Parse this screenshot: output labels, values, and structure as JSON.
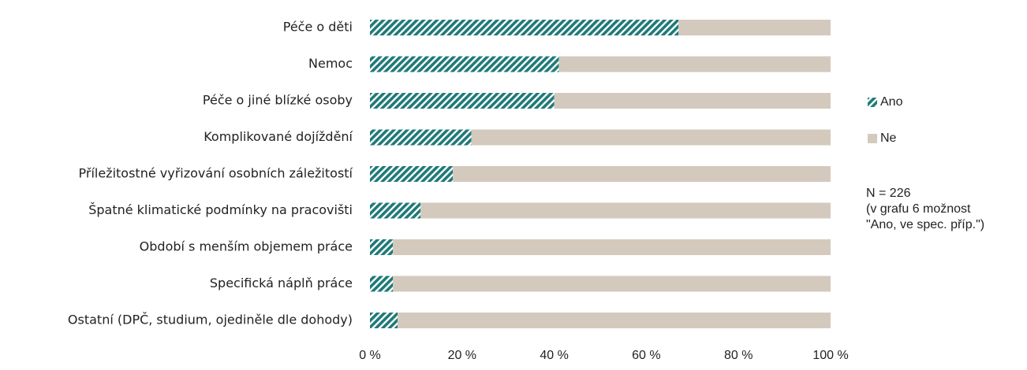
{
  "chart_data": {
    "type": "stacked-bar-horizontal",
    "categories": [
      "Péče o děti",
      "Nemoc",
      "Péče o jiné blízké osoby",
      "Komplikované dojíždění",
      "Příležitostné vyřizování osobních záležitostí",
      "Špatné klimatické podmínky na pracovišti",
      "Období s menším objemem práce",
      "Specifická náplň práce",
      "Ostatní (DPČ, studium, ojediněle dle dohody)"
    ],
    "series": [
      {
        "name": "Ano",
        "color": "#1f7a78",
        "hatch": true,
        "values": [
          67,
          41,
          40,
          22,
          18,
          11,
          5,
          5,
          6
        ]
      },
      {
        "name": "Ne",
        "color": "#d3cabd",
        "hatch": false,
        "values": [
          33,
          59,
          60,
          78,
          82,
          89,
          95,
          95,
          94
        ]
      }
    ],
    "xlim": [
      0,
      100
    ],
    "xticks": [
      {
        "value": 0,
        "label": "0 %"
      },
      {
        "value": 20,
        "label": "20 %"
      },
      {
        "value": 40,
        "label": "40 %"
      },
      {
        "value": 60,
        "label": "60 %"
      },
      {
        "value": 80,
        "label": "80 %"
      },
      {
        "value": 100,
        "label": "100 %"
      }
    ],
    "grid": false,
    "legend": "right",
    "annotation": [
      "N = 226",
      "(v grafu 6 možnost",
      "\"Ano, ve spec. příp.\")"
    ]
  }
}
